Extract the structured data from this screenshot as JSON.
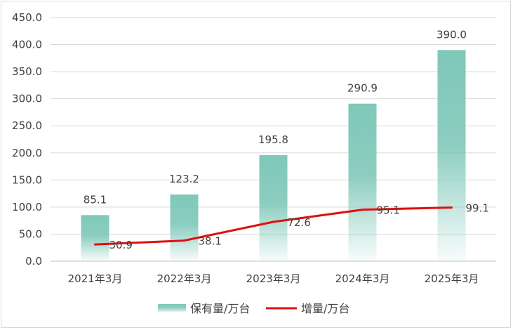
{
  "chart_data": {
    "type": "bar",
    "title": "",
    "xlabel": "",
    "ylabel": "",
    "categories": [
      "2021年3月",
      "2022年3月",
      "2023年3月",
      "2024年3月",
      "2025年3月"
    ],
    "ylim": [
      0,
      450
    ],
    "yticks": [
      "0.0",
      "50.0",
      "100.0",
      "150.0",
      "200.0",
      "250.0",
      "300.0",
      "350.0",
      "400.0",
      "450.0"
    ],
    "grid": true,
    "legend_position": "bottom",
    "series": [
      {
        "name": "保有量/万台",
        "type": "bar",
        "values": [
          85.1,
          123.2,
          195.8,
          290.9,
          390.0
        ],
        "labels": [
          "85.1",
          "123.2",
          "195.8",
          "290.9",
          "390.0"
        ],
        "color": "#7fc8b9"
      },
      {
        "name": "增量/万台",
        "type": "line",
        "values": [
          30.9,
          38.1,
          72.6,
          95.1,
          99.1
        ],
        "labels": [
          "30.9",
          "38.1",
          "72.6",
          "95.1",
          "99.1"
        ],
        "color": "#e01010"
      }
    ]
  }
}
